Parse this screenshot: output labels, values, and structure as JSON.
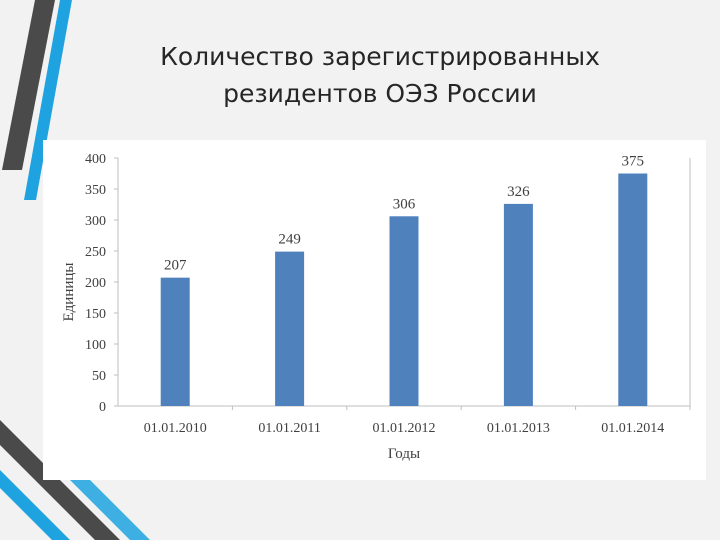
{
  "slide": {
    "title_line1": "Количество зарегистрированных",
    "title_line2": "резидентов ОЭЗ России"
  },
  "colors": {
    "bar": "#4f81bd",
    "accent_blue": "#1fa3e0",
    "accent_dark": "#4a4a4a"
  },
  "chart_data": {
    "type": "bar",
    "title": "",
    "xlabel": "Годы",
    "ylabel": "Единицы",
    "categories": [
      "01.01.2010",
      "01.01.2011",
      "01.01.2012",
      "01.01.2013",
      "01.01.2014"
    ],
    "values": [
      207,
      249,
      306,
      326,
      375
    ],
    "ylim": [
      0,
      400
    ],
    "yticks": [
      0,
      50,
      100,
      150,
      200,
      250,
      300,
      350,
      400
    ],
    "data_labels": true,
    "grid": false,
    "legend": "none"
  }
}
